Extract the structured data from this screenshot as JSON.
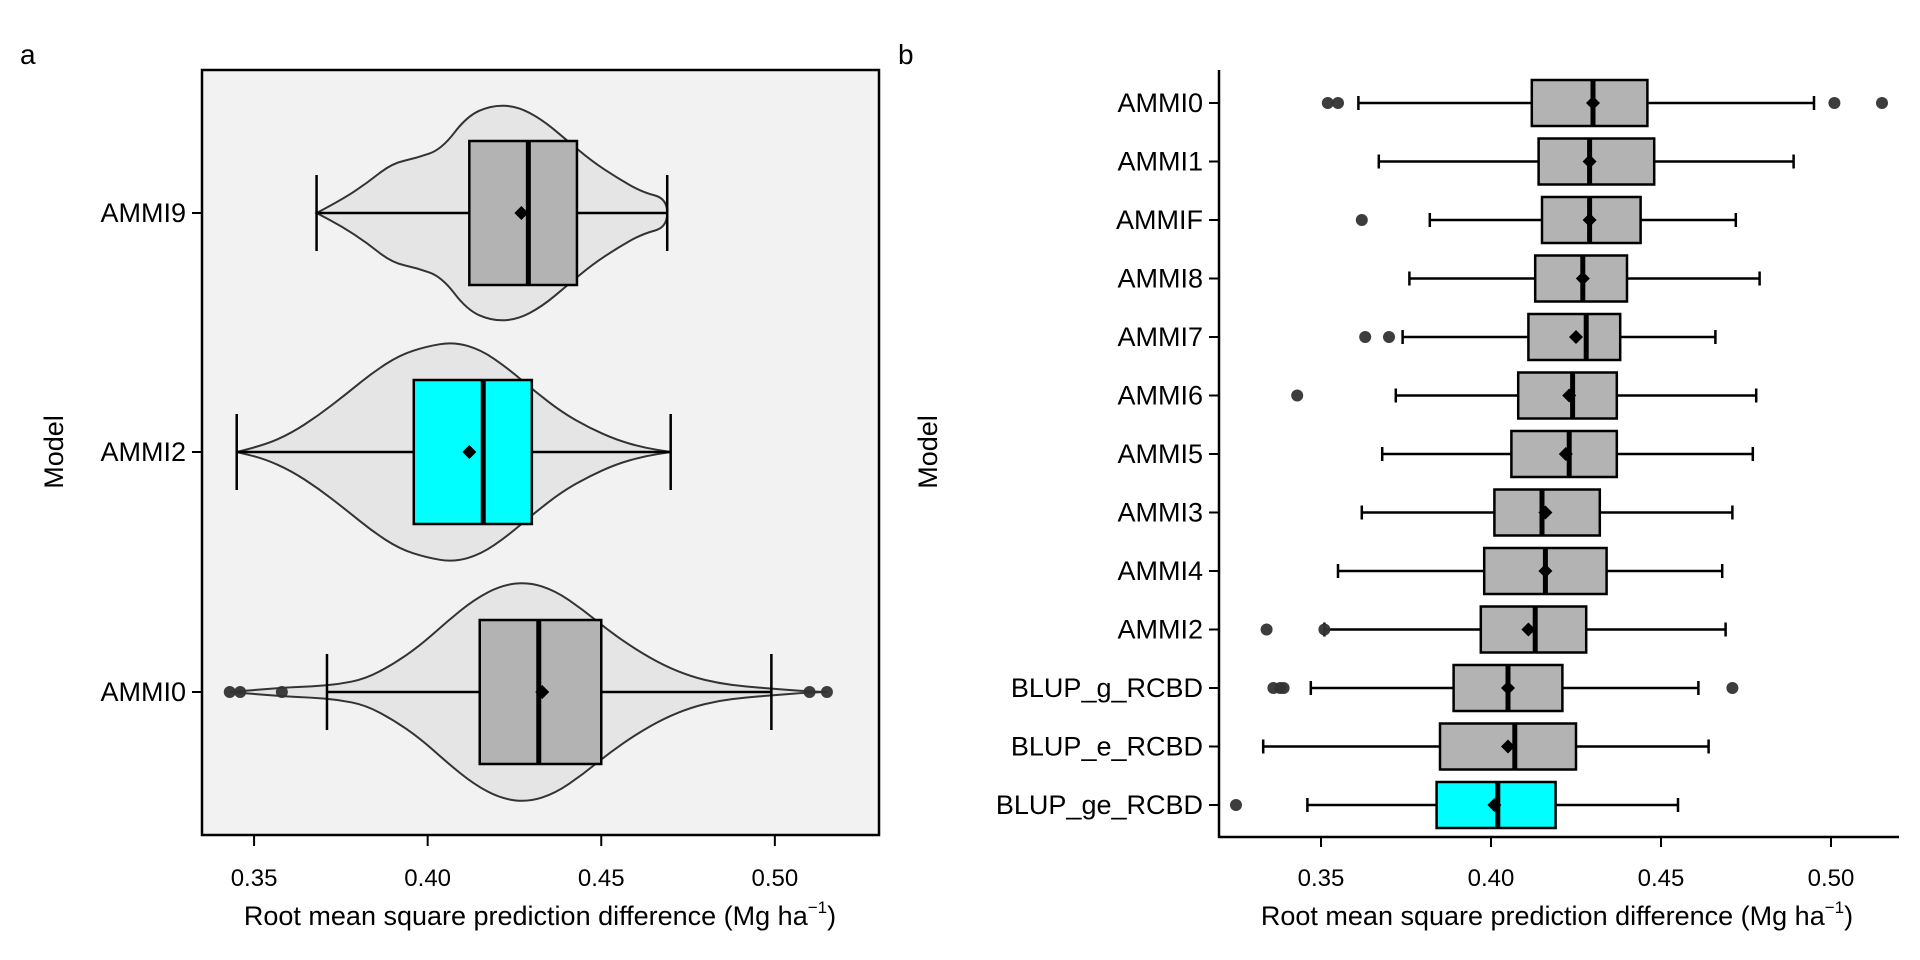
{
  "colors": {
    "box_default": "#b3b3b3",
    "box_highlight": "#00ffff",
    "violin_fill": "#e5e5e5",
    "panel_a_background": "#f2f2f2",
    "outlier": "#333333"
  },
  "chart_data": [
    {
      "panel_label": "a",
      "type": "violin-box",
      "orientation": "horizontal",
      "xlabel": "Root mean square prediction difference (Mg ha",
      "xlabel_sup": "−1",
      "xlabel_close": ")",
      "ylabel": "Model",
      "xlim": [
        0.335,
        0.53
      ],
      "xticks": [
        0.35,
        0.4,
        0.45,
        0.5
      ],
      "xtick_labels": [
        "0.35",
        "0.40",
        "0.45",
        "0.50"
      ],
      "background": "light-grey panel with black border",
      "categories": [
        {
          "name": "AMMI9",
          "min": 0.368,
          "q1": 0.412,
          "median": 0.429,
          "q3": 0.443,
          "max": 0.469,
          "mean": 0.427,
          "highlight": false,
          "outliers": [],
          "violin_range": [
            0.368,
            0.469
          ],
          "violin_density": [
            0.0,
            0.12,
            0.27,
            0.45,
            0.5,
            0.58,
            0.88,
            0.98,
            0.97,
            0.85,
            0.66,
            0.47,
            0.32,
            0.19,
            0.13
          ]
        },
        {
          "name": "AMMI2",
          "min": 0.345,
          "q1": 0.396,
          "median": 0.416,
          "q3": 0.43,
          "max": 0.47,
          "mean": 0.412,
          "highlight": true,
          "outliers": [],
          "violin_range": [
            0.345,
            0.47
          ],
          "violin_density": [
            0.0,
            0.06,
            0.17,
            0.33,
            0.52,
            0.72,
            0.88,
            0.96,
            1.0,
            0.93,
            0.76,
            0.55,
            0.36,
            0.22,
            0.11,
            0.04,
            0.0
          ]
        },
        {
          "name": "AMMI0",
          "min": 0.371,
          "q1": 0.415,
          "median": 0.432,
          "q3": 0.45,
          "max": 0.499,
          "mean": 0.433,
          "highlight": false,
          "outliers": [
            0.343,
            0.346,
            0.358,
            0.51,
            0.515
          ],
          "violin_range": [
            0.343,
            0.515
          ],
          "violin_density": [
            0.0,
            0.02,
            0.04,
            0.05,
            0.07,
            0.12,
            0.25,
            0.42,
            0.64,
            0.84,
            0.97,
            1.0,
            0.92,
            0.75,
            0.55,
            0.38,
            0.24,
            0.14,
            0.08,
            0.05,
            0.03,
            0.01,
            0.0
          ]
        }
      ]
    },
    {
      "panel_label": "b",
      "type": "box",
      "orientation": "horizontal",
      "xlabel": "Root mean square prediction difference (Mg ha",
      "xlabel_sup": "−1",
      "xlabel_close": ")",
      "ylabel": "Model",
      "xlim": [
        0.32,
        0.52
      ],
      "xticks": [
        0.35,
        0.4,
        0.45,
        0.5
      ],
      "xtick_labels": [
        "0.35",
        "0.40",
        "0.45",
        "0.50"
      ],
      "categories": [
        {
          "name": "AMMI0",
          "min": 0.361,
          "q1": 0.412,
          "median": 0.43,
          "q3": 0.446,
          "max": 0.495,
          "mean": 0.43,
          "highlight": false,
          "outliers": [
            0.352,
            0.355,
            0.501,
            0.515
          ]
        },
        {
          "name": "AMMI1",
          "min": 0.367,
          "q1": 0.414,
          "median": 0.429,
          "q3": 0.448,
          "max": 0.489,
          "mean": 0.429,
          "highlight": false,
          "outliers": []
        },
        {
          "name": "AMMIF",
          "min": 0.382,
          "q1": 0.415,
          "median": 0.429,
          "q3": 0.444,
          "max": 0.472,
          "mean": 0.429,
          "highlight": false,
          "outliers": [
            0.362
          ]
        },
        {
          "name": "AMMI8",
          "min": 0.376,
          "q1": 0.413,
          "median": 0.427,
          "q3": 0.44,
          "max": 0.479,
          "mean": 0.427,
          "highlight": false,
          "outliers": []
        },
        {
          "name": "AMMI7",
          "min": 0.374,
          "q1": 0.411,
          "median": 0.428,
          "q3": 0.438,
          "max": 0.466,
          "mean": 0.425,
          "highlight": false,
          "outliers": [
            0.363,
            0.37
          ]
        },
        {
          "name": "AMMI6",
          "min": 0.372,
          "q1": 0.408,
          "median": 0.424,
          "q3": 0.437,
          "max": 0.478,
          "mean": 0.423,
          "highlight": false,
          "outliers": [
            0.343
          ]
        },
        {
          "name": "AMMI5",
          "min": 0.368,
          "q1": 0.406,
          "median": 0.423,
          "q3": 0.437,
          "max": 0.477,
          "mean": 0.422,
          "highlight": false,
          "outliers": []
        },
        {
          "name": "AMMI3",
          "min": 0.362,
          "q1": 0.401,
          "median": 0.415,
          "q3": 0.432,
          "max": 0.471,
          "mean": 0.416,
          "highlight": false,
          "outliers": []
        },
        {
          "name": "AMMI4",
          "min": 0.355,
          "q1": 0.398,
          "median": 0.416,
          "q3": 0.434,
          "max": 0.468,
          "mean": 0.416,
          "highlight": false,
          "outliers": []
        },
        {
          "name": "AMMI2",
          "min": 0.351,
          "q1": 0.397,
          "median": 0.413,
          "q3": 0.428,
          "max": 0.469,
          "mean": 0.411,
          "highlight": false,
          "outliers": [
            0.334,
            0.351
          ]
        },
        {
          "name": "BLUP_g_RCBD",
          "min": 0.347,
          "q1": 0.389,
          "median": 0.405,
          "q3": 0.421,
          "max": 0.461,
          "mean": 0.405,
          "highlight": false,
          "outliers": [
            0.336,
            0.338,
            0.339,
            0.471
          ]
        },
        {
          "name": "BLUP_e_RCBD",
          "min": 0.333,
          "q1": 0.385,
          "median": 0.407,
          "q3": 0.425,
          "max": 0.464,
          "mean": 0.405,
          "highlight": false,
          "outliers": []
        },
        {
          "name": "BLUP_ge_RCBD",
          "min": 0.346,
          "q1": 0.384,
          "median": 0.402,
          "q3": 0.419,
          "max": 0.455,
          "mean": 0.401,
          "highlight": true,
          "outliers": [
            0.325
          ]
        }
      ]
    }
  ]
}
